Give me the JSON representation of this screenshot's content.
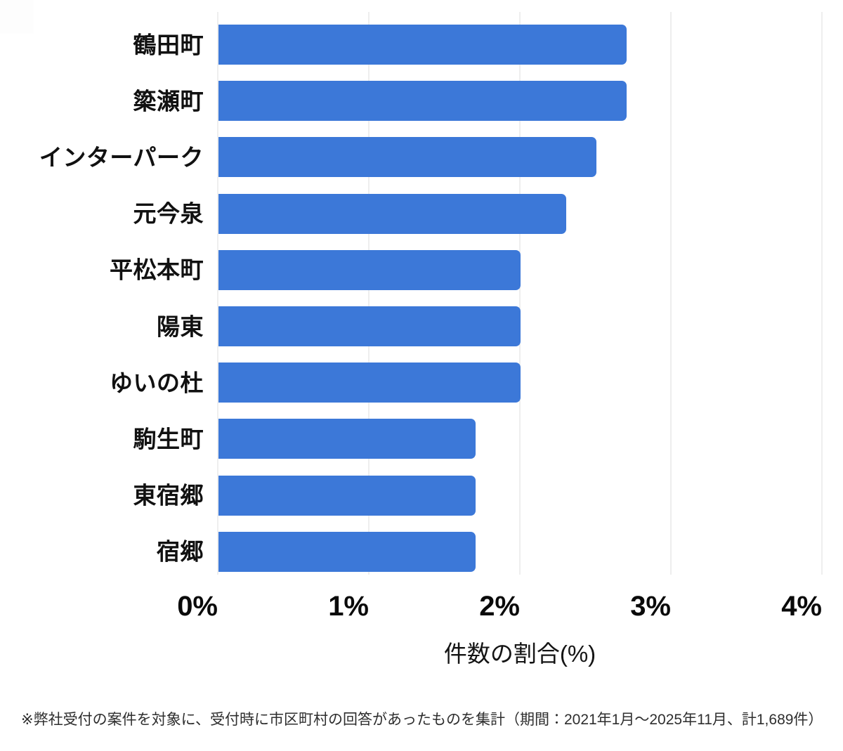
{
  "chart_data": {
    "type": "bar",
    "orientation": "horizontal",
    "title": "",
    "categories": [
      "鶴田町",
      "簗瀬町",
      "インターパーク",
      "元今泉",
      "平松本町",
      "陽東",
      "ゆいの杜",
      "駒生町",
      "東宿郷",
      "宿郷"
    ],
    "values": [
      2.7,
      2.7,
      2.5,
      2.3,
      2.0,
      2.0,
      2.0,
      1.7,
      1.7,
      1.7
    ],
    "unit": "%",
    "xlabel": "件数の割合(%)",
    "ylabel": "",
    "xlim": [
      0,
      4
    ],
    "xtick_values": [
      0,
      1,
      2,
      3,
      4
    ],
    "xtick_labels": [
      "0%",
      "1%",
      "2%",
      "3%",
      "4%"
    ],
    "grid": true,
    "legend": false,
    "bar_color": "#3c78d8",
    "gridline_color": "#dcdcdc",
    "background_color": "#ffffff"
  },
  "footnote": "※弊社受付の案件を対象に、受付時に市区町村の回答があったものを集計（期間：2021年1月～2025年11月、計1,689件）"
}
